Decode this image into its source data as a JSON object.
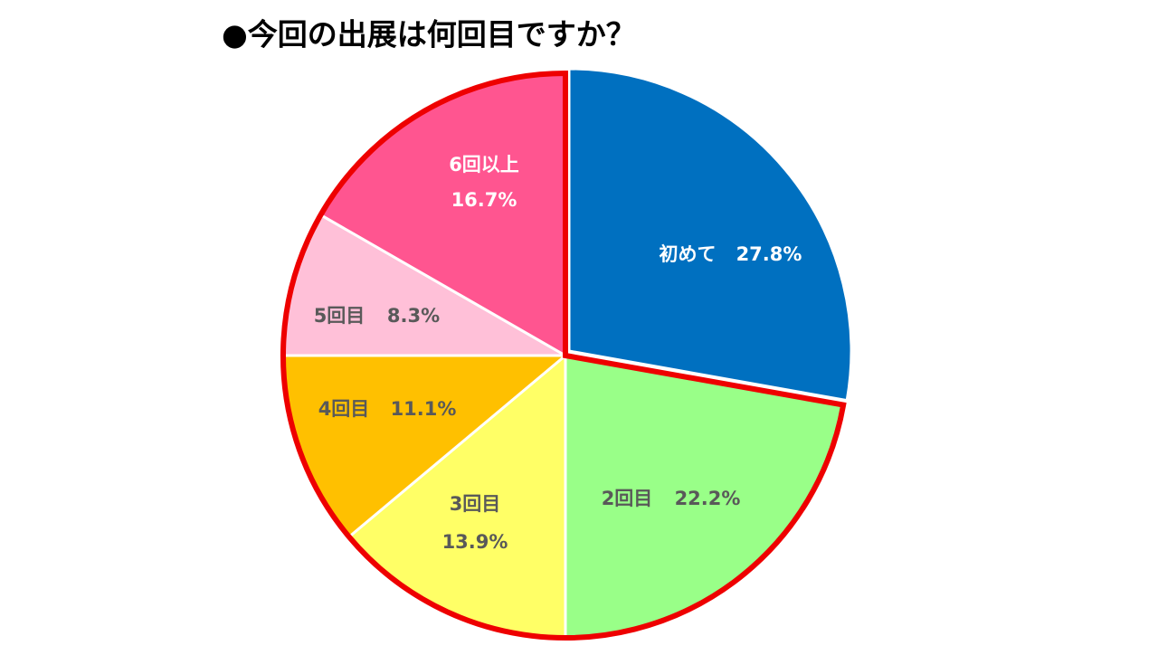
{
  "chart_data": {
    "type": "pie",
    "title": "●今回の出展は何回目ですか？",
    "categories": [
      "初めて",
      "2回目",
      "3回目",
      "4回目",
      "5回目",
      "6回以上"
    ],
    "values": [
      27.8,
      22.2,
      13.9,
      11.1,
      8.3,
      16.7
    ],
    "value_labels": [
      "27.8%",
      "22.2%",
      "13.9%",
      "11.1%",
      "8.3%",
      "16.7%"
    ],
    "colors": [
      "#0070c0",
      "#99ff88",
      "#ffff66",
      "#ffc000",
      "#ffc0d8",
      "#ff5590"
    ]
  }
}
